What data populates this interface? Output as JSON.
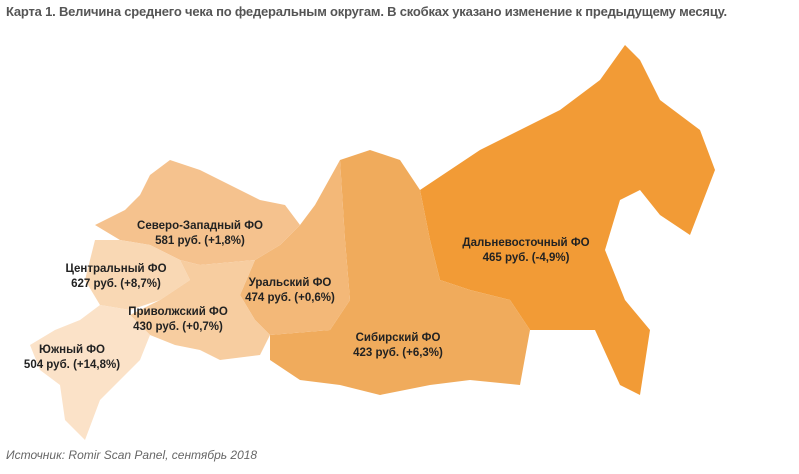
{
  "title": "Карта 1. Величина среднего чека по федеральным округам. В скобках указано изменение к предыдущему месяцу.",
  "regions": [
    {
      "name": "Северо-Западный ФО",
      "value": "581 руб. (+1,8%)",
      "color": "#f5c28e"
    },
    {
      "name": "Центральный ФО",
      "value": "627 руб. (+8,7%)",
      "color": "#f9d8b4"
    },
    {
      "name": "Приволжский ФО",
      "value": "430 руб. (+0,7%)",
      "color": "#f7cda0"
    },
    {
      "name": "Южный ФО",
      "value": "504 руб. (+14,8%)",
      "color": "#fbe2c8"
    },
    {
      "name": "Уральский ФО",
      "value": "474 руб. (+0,6%)",
      "color": "#f3b878"
    },
    {
      "name": "Сибирский ФО",
      "value": "423 руб. (+6,3%)",
      "color": "#f0ab5c"
    },
    {
      "name": "Дальневосточный ФО",
      "value": "465 руб. (-4,9%)",
      "color": "#f29b36"
    }
  ],
  "source": "Источник: Romir Scan Panel, сентябрь 2018"
}
